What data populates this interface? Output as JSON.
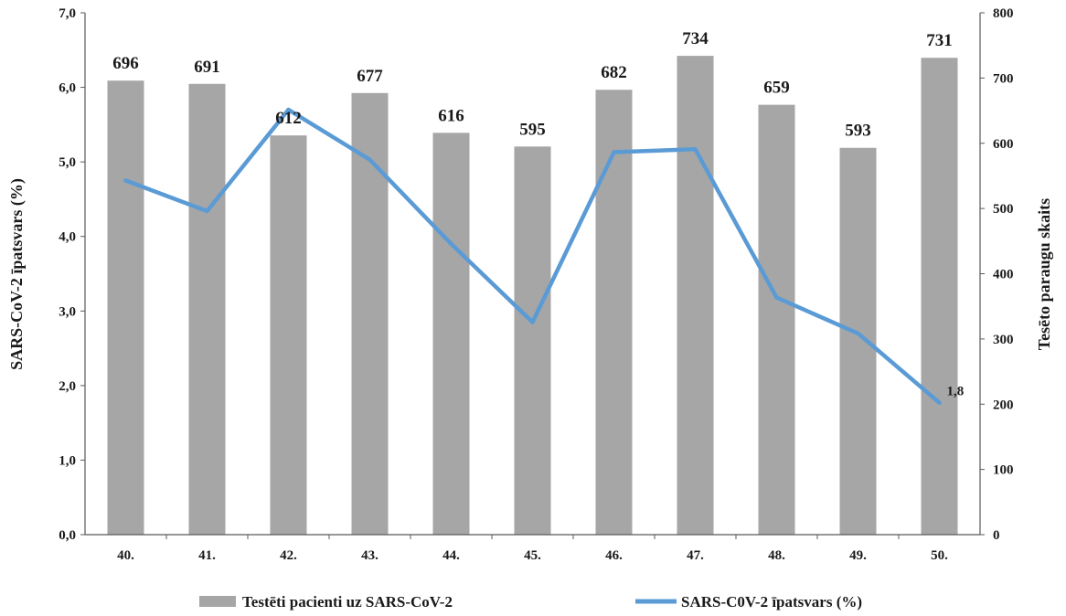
{
  "chart_data": {
    "type": "bar+line",
    "categories": [
      "40.",
      "41.",
      "42.",
      "43.",
      "44.",
      "45.",
      "46.",
      "47.",
      "48.",
      "49.",
      "50."
    ],
    "series": [
      {
        "name": "Testēti pacienti uz SARS-CoV-2",
        "type": "bar",
        "axis": "right",
        "values": [
          696,
          691,
          612,
          677,
          616,
          595,
          682,
          734,
          659,
          593,
          731
        ],
        "color": "#a6a6a6",
        "data_labels": [
          "696",
          "691",
          "612",
          "677",
          "616",
          "595",
          "682",
          "734",
          "659",
          "593",
          "731"
        ]
      },
      {
        "name": "SARS-C0V-2 īpatsvars (%)",
        "type": "line",
        "axis": "left",
        "values": [
          4.75,
          4.34,
          5.7,
          5.03,
          3.9,
          2.85,
          5.13,
          5.17,
          3.18,
          2.7,
          1.77
        ],
        "color": "#5b9bd5",
        "end_label": "1,8"
      }
    ],
    "y_left": {
      "label": "SARS-CoV-2 īpatsvars (%)",
      "range": [
        0,
        7
      ],
      "ticks": [
        "0,0",
        "1,0",
        "2,0",
        "3,0",
        "4,0",
        "5,0",
        "6,0",
        "7,0"
      ]
    },
    "y_right": {
      "label": "Tesēto paraugu skaits",
      "range": [
        0,
        800
      ],
      "ticks": [
        "0",
        "100",
        "200",
        "300",
        "400",
        "500",
        "600",
        "700",
        "800"
      ]
    },
    "grid": false,
    "legend_position": "bottom"
  }
}
